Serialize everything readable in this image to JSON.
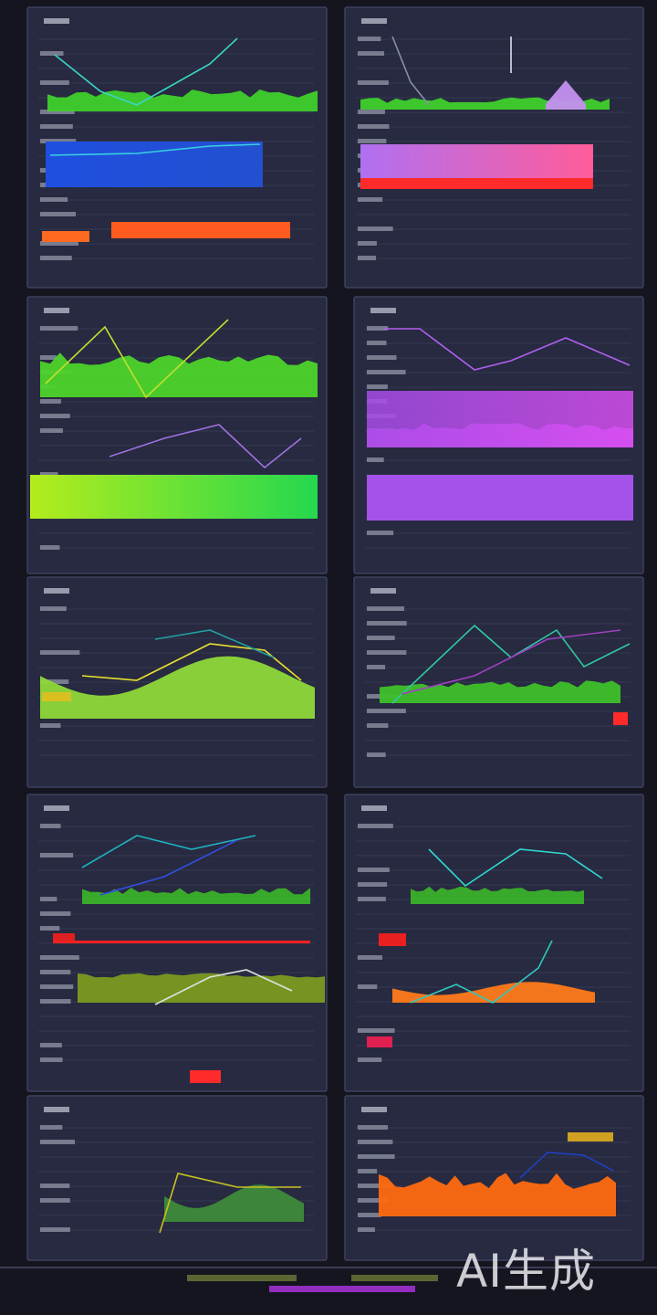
{
  "watermark": "AI生成"
}
